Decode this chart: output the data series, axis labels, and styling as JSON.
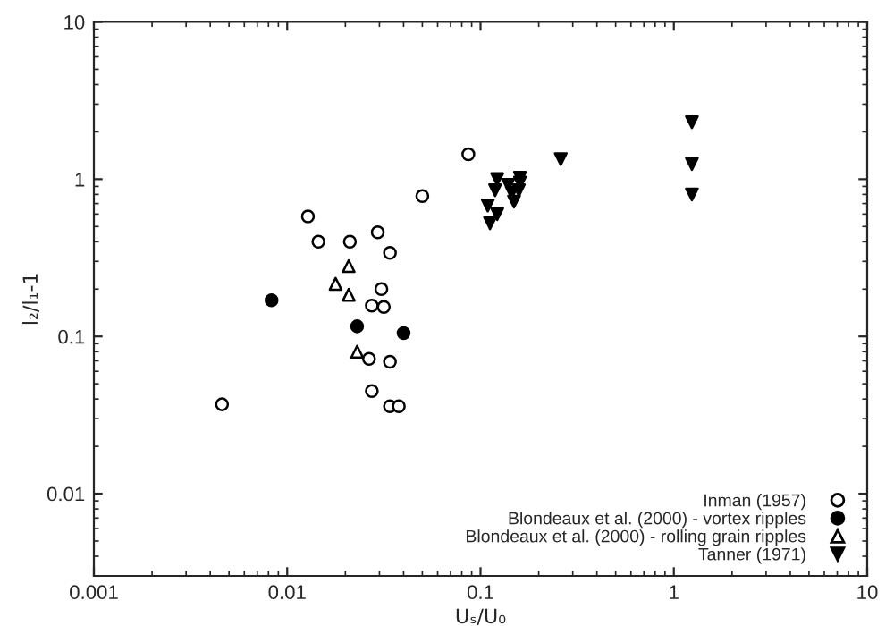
{
  "chart_data": {
    "type": "scatter",
    "xlabel": "Uₛ/U₀",
    "ylabel": "l₂/l₁-1",
    "log": "xy",
    "xlim": [
      0.001,
      10
    ],
    "ylim": [
      0.003,
      10
    ],
    "xticks": [
      0.001,
      0.01,
      0.1,
      1,
      10
    ],
    "yticks": [
      0.01,
      0.1,
      1,
      10
    ],
    "grid": false,
    "legend": "bottom right",
    "series": [
      {
        "name": "Inman (1957)",
        "color": "#ffffff",
        "marker": "circle",
        "x": [
          0.0865,
          0.05,
          0.0128,
          0.0145,
          0.0211,
          0.0294,
          0.034,
          0.0307,
          0.0274,
          0.0316,
          0.0265,
          0.034,
          0.0274,
          0.034,
          0.0378,
          0.0046
        ],
        "values": [
          1.44,
          0.78,
          0.58,
          0.4,
          0.4,
          0.46,
          0.34,
          0.2,
          0.157,
          0.154,
          0.072,
          0.069,
          0.045,
          0.036,
          0.036,
          0.037
        ]
      },
      {
        "name": "Blondeaux et al. (2000) - vortex ripples",
        "color": "#000000",
        "marker": "circle",
        "x": [
          0.0083,
          0.023,
          0.04
        ],
        "values": [
          0.17,
          0.116,
          0.105
        ]
      },
      {
        "name": "Blondeaux et al. (2000) - rolling grain ripples",
        "color": "#ffffff",
        "marker": "triangle",
        "x": [
          0.0208,
          0.0178,
          0.0208,
          0.023
        ],
        "values": [
          0.28,
          0.216,
          0.184,
          0.08
        ]
      },
      {
        "name": "Tanner (1971)",
        "color": "#000000",
        "marker": "triangle_down",
        "x": [
          0.26,
          1.24,
          1.24,
          1.24,
          0.122,
          0.16,
          0.16,
          0.139,
          0.119,
          0.145,
          0.158,
          0.149,
          0.109,
          0.122,
          0.112
        ],
        "values": [
          1.34,
          1.25,
          0.8,
          2.3,
          1.0,
          1.02,
          0.95,
          0.92,
          0.85,
          0.82,
          0.85,
          0.72,
          0.68,
          0.6,
          0.525
        ]
      }
    ]
  }
}
